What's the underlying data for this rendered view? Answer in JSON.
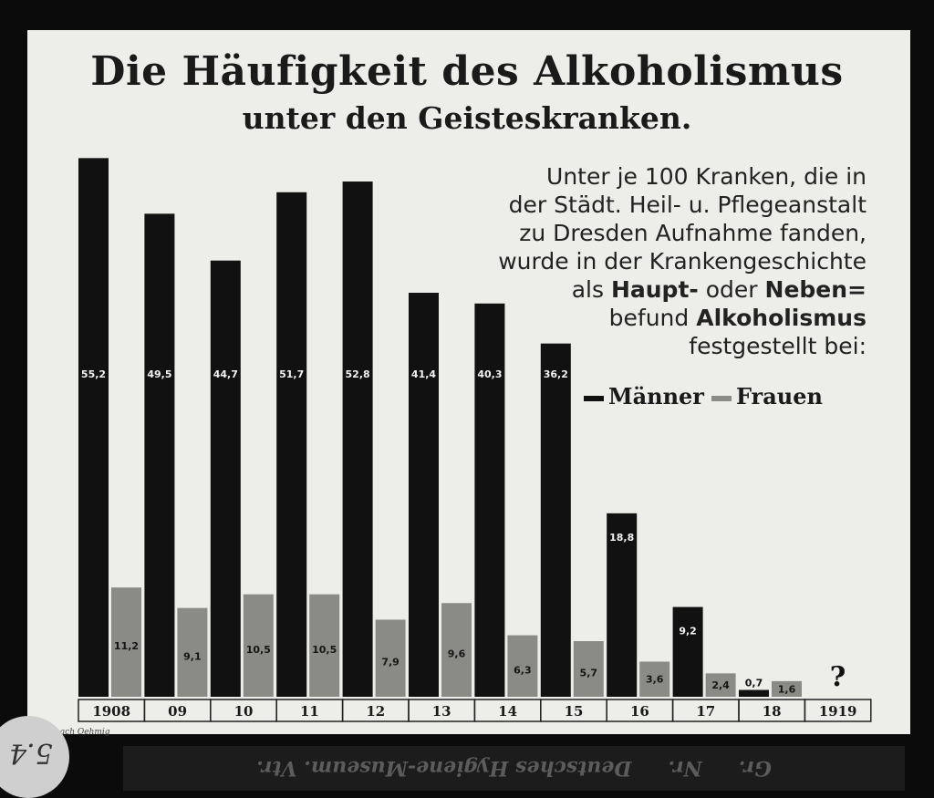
{
  "title": "Die Häufigkeit des Alkoholismus",
  "subtitle": "unter den Geisteskranken.",
  "description": {
    "line1": "Unter je 100 Kranken, die in",
    "line2": "der Städt. Heil- u. Pflegeanstalt",
    "line3": "zu Dresden Aufnahme fanden,",
    "line4": "wurde in der Krankengeschichte",
    "line5_a": "als ",
    "line5_b": "Haupt-",
    "line5_c": " oder ",
    "line5_d": "Neben=",
    "line6_a": "befund ",
    "line6_b": "Alkoholismus",
    "line7": "festgestellt bei:"
  },
  "legend": {
    "men": "Männer",
    "women": "Frauen"
  },
  "source": "nach Oehmig",
  "museum_label": {
    "prefix": "Gr.",
    "name": "Deutsches Hygiene-Museum. Vtr.",
    "number": "Nr."
  },
  "handwritten": "5.4",
  "colors": {
    "men": "#111111",
    "women": "#8a8a87",
    "background": "#ededea"
  },
  "chart_data": {
    "type": "bar",
    "categories": [
      "1908",
      "09",
      "10",
      "11",
      "12",
      "13",
      "14",
      "15",
      "16",
      "17",
      "18",
      "1919"
    ],
    "series": [
      {
        "name": "Männer",
        "values": [
          55.2,
          49.5,
          44.7,
          51.7,
          52.8,
          41.4,
          40.3,
          36.2,
          18.8,
          9.2,
          0.7,
          null
        ]
      },
      {
        "name": "Frauen",
        "values": [
          11.2,
          9.1,
          10.5,
          10.5,
          7.9,
          9.6,
          6.3,
          5.7,
          3.6,
          2.4,
          1.6,
          null
        ]
      }
    ],
    "value_labels": {
      "Männer": [
        "55,2",
        "49,5",
        "44,7",
        "51,7",
        "52,8",
        "41,4",
        "40,3",
        "36,2",
        "18,8",
        "9,2",
        "0,7",
        ""
      ],
      "Frauen": [
        "11,2",
        "9,1",
        "10,5",
        "10,5",
        "7,9",
        "9,6",
        "6,3",
        "5,7",
        "3,6",
        "2,4",
        "1,6",
        ""
      ]
    },
    "unknown_marker": "?",
    "title": "Die Häufigkeit des Alkoholismus unter den Geisteskranken.",
    "xlabel": "",
    "ylabel": "",
    "ylim": [
      0,
      56
    ],
    "grid": false,
    "legend_position": "right"
  }
}
